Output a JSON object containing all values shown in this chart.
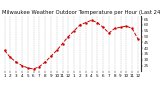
{
  "title": "Milwaukee Weather Outdoor Temperature per Hour (Last 24 Hours)",
  "hours": [
    0,
    1,
    2,
    3,
    4,
    5,
    6,
    7,
    8,
    9,
    10,
    11,
    12,
    13,
    14,
    15,
    16,
    17,
    18,
    19,
    20,
    21,
    22,
    23
  ],
  "temps": [
    38,
    32,
    28,
    25,
    23,
    22,
    24,
    28,
    33,
    38,
    44,
    50,
    55,
    60,
    62,
    64,
    62,
    58,
    53,
    57,
    58,
    59,
    57,
    48
  ],
  "line_color": "#cc0000",
  "marker": "o",
  "marker_size": 1.5,
  "linestyle": "--",
  "linewidth": 0.7,
  "ylim": [
    20,
    68
  ],
  "yticks": [
    25,
    30,
    35,
    40,
    45,
    50,
    55,
    60,
    65
  ],
  "grid_color": "#999999",
  "bg_color": "#ffffff",
  "title_fontsize": 3.8,
  "tick_fontsize": 3.0,
  "label_color": "#333333"
}
